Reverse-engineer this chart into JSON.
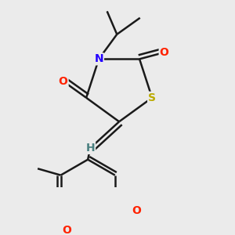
{
  "bg_color": "#ebebeb",
  "bond_color": "#1a1a1a",
  "bond_width": 1.8,
  "dbo": 0.045,
  "atom_colors": {
    "O": "#ff2200",
    "N": "#2200ff",
    "S": "#bbaa00",
    "H": "#4a8080",
    "C": "#1a1a1a"
  },
  "afs": 10
}
